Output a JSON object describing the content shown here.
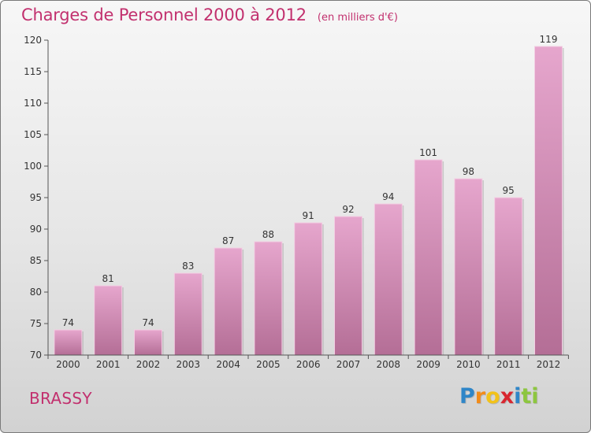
{
  "chart_data": {
    "type": "bar",
    "title": "Charges de Personnel 2000 à 2012",
    "subtitle": "(en milliers d'€)",
    "categories": [
      "2000",
      "2001",
      "2002",
      "2003",
      "2004",
      "2005",
      "2006",
      "2007",
      "2008",
      "2009",
      "2010",
      "2011",
      "2012"
    ],
    "values": [
      74,
      81,
      74,
      83,
      87,
      88,
      91,
      92,
      94,
      101,
      98,
      95,
      119
    ],
    "ylim": [
      70,
      120
    ],
    "yticks": [
      70,
      75,
      80,
      85,
      90,
      95,
      100,
      105,
      110,
      115,
      120
    ],
    "xlabel": "",
    "ylabel": "",
    "grid": false,
    "bar_color": "#d98bb6"
  },
  "place": "BRASSY",
  "logo": {
    "letters": [
      "P",
      "r",
      "o",
      "x",
      "i",
      "t",
      "i"
    ],
    "colors": [
      "#2f86c8",
      "#f28c1a",
      "#f2c21a",
      "#d8262f",
      "#2f86c8",
      "#8dc63f",
      "#8dc63f"
    ]
  }
}
